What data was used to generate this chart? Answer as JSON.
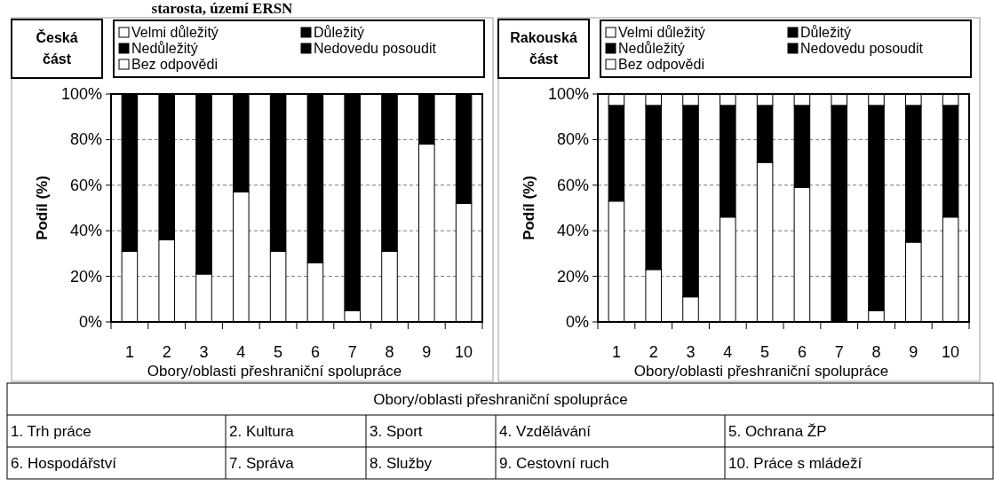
{
  "chart_data": [
    {
      "type": "other",
      "title": "starosta, území ERSN"
    },
    {
      "type": "bar",
      "title": "Česká část",
      "stacked": true,
      "categories": [
        "1",
        "2",
        "3",
        "4",
        "5",
        "6",
        "7",
        "8",
        "9",
        "10"
      ],
      "xlabel": "Obory/oblasti přeshraniční spolupráce",
      "ylabel": "Podíl (%)",
      "ylim": [
        0,
        100
      ],
      "yticks": [
        {
          "value": 0,
          "label": "0%"
        },
        {
          "value": 20,
          "label": "20%"
        },
        {
          "value": 40,
          "label": "40%"
        },
        {
          "value": 60,
          "label": "60%"
        },
        {
          "value": 80,
          "label": "80%"
        },
        {
          "value": 100,
          "label": "100%"
        }
      ],
      "grid": "y",
      "legend": "top",
      "series": [
        {
          "name": "Velmi důležitý",
          "color": "#ffffff",
          "values": [
            31,
            36,
            21,
            57,
            31,
            26,
            5,
            31,
            78,
            52
          ]
        },
        {
          "name": "Důležitý",
          "color": "#000000",
          "values": [
            69,
            64,
            79,
            43,
            69,
            74,
            95,
            69,
            22,
            48
          ]
        },
        {
          "name": "Nedůležitý",
          "color": "#000000",
          "values": [
            0,
            0,
            0,
            0,
            0,
            0,
            0,
            0,
            0,
            0
          ]
        },
        {
          "name": "Nedovedu posoudit",
          "color": "#000000",
          "values": [
            0,
            0,
            0,
            0,
            0,
            0,
            0,
            0,
            0,
            0
          ]
        },
        {
          "name": "Bez odpovědi",
          "color": "#ffffff",
          "values": [
            0,
            0,
            0,
            0,
            0,
            0,
            0,
            0,
            0,
            0
          ]
        }
      ]
    },
    {
      "type": "bar",
      "title": "Rakouská část",
      "stacked": true,
      "categories": [
        "1",
        "2",
        "3",
        "4",
        "5",
        "6",
        "7",
        "8",
        "9",
        "10"
      ],
      "xlabel": "Obory/oblasti přeshraniční spolupráce",
      "ylabel": "Podíl (%)",
      "ylim": [
        0,
        100
      ],
      "yticks": [
        {
          "value": 0,
          "label": "0%"
        },
        {
          "value": 20,
          "label": "20%"
        },
        {
          "value": 40,
          "label": "40%"
        },
        {
          "value": 60,
          "label": "60%"
        },
        {
          "value": 80,
          "label": "80%"
        },
        {
          "value": 100,
          "label": "100%"
        }
      ],
      "grid": "y",
      "legend": "top",
      "series": [
        {
          "name": "Velmi důležitý",
          "color": "#ffffff",
          "values": [
            53,
            23,
            11,
            46,
            70,
            59,
            0,
            5,
            35,
            46
          ]
        },
        {
          "name": "Důležitý",
          "color": "#000000",
          "values": [
            42,
            72,
            84,
            49,
            25,
            36,
            95,
            90,
            60,
            49
          ]
        },
        {
          "name": "Nedůležitý",
          "color": "#000000",
          "values": [
            0,
            0,
            0,
            0,
            0,
            0,
            0,
            0,
            0,
            0
          ]
        },
        {
          "name": "Nedovedu posoudit",
          "color": "#000000",
          "values": [
            0,
            0,
            0,
            0,
            0,
            0,
            0,
            0,
            0,
            0
          ]
        },
        {
          "name": "Bez odpovědi",
          "color": "#ffffff",
          "values": [
            5,
            5,
            5,
            5,
            5,
            5,
            5,
            5,
            5,
            5
          ]
        }
      ]
    },
    {
      "type": "other",
      "title": "Obory/oblasti přeshraniční spolupráce",
      "annotations": [
        "1. Trh práce",
        "2. Kultura",
        "3. Sport",
        "4. Vzdělávání",
        "5. Ochrana ŽP",
        "6. Hospodářství",
        "7. Správa",
        "8. Služby",
        "9. Cestovní ruch",
        "10. Práce s mládeží"
      ]
    }
  ]
}
